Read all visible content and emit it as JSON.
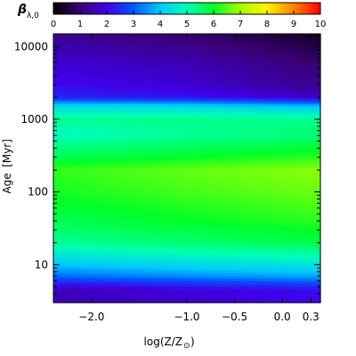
{
  "chart_data": {
    "type": "heatmap",
    "title": "",
    "colorbar": {
      "label_symbol": "β",
      "label_subscript": "λ,0",
      "range": [
        0,
        10
      ],
      "ticks": [
        "0",
        "1",
        "2",
        "3",
        "4",
        "5",
        "6",
        "7",
        "8",
        "9",
        "10"
      ],
      "colormap": [
        "#000000",
        "#3a0076",
        "#3f00e8",
        "#0057ff",
        "#00c8ff",
        "#00ffb2",
        "#00ff28",
        "#a6ff00",
        "#fff200",
        "#ff8200",
        "#ff0000"
      ],
      "placement": "top"
    },
    "xlabel": "log(Z/Z",
    "xlabel_subscript": "⊙",
    "xlabel_close": ")",
    "xlim": [
      -2.4,
      0.4
    ],
    "xticks": [
      {
        "value": -2.0,
        "label": "−2.0"
      },
      {
        "value": -1.0,
        "label": "−1.0"
      },
      {
        "value": -0.5,
        "label": "−0.5"
      },
      {
        "value": 0.0,
        "label": "0.0"
      },
      {
        "value": 0.3,
        "label": "0.3"
      }
    ],
    "ylabel": "Age",
    "ylabel_unit": "[Myr]",
    "yscale": "log",
    "ylim": [
      3,
      15000
    ],
    "yticks": [
      {
        "value": 10,
        "label": "10"
      },
      {
        "value": 100,
        "label": "100"
      },
      {
        "value": 1000,
        "label": "1000"
      },
      {
        "value": 10000,
        "label": "10000"
      }
    ],
    "age_profile": [
      {
        "age": 3,
        "beta": 1.8
      },
      {
        "age": 4.5,
        "beta": 1.9
      },
      {
        "age": 5.5,
        "beta": 2.6
      },
      {
        "age": 7,
        "beta": 3.5
      },
      {
        "age": 10,
        "beta": 4.3
      },
      {
        "age": 20,
        "beta": 5.5
      },
      {
        "age": 40,
        "beta": 6.0
      },
      {
        "age": 100,
        "beta": 6.4
      },
      {
        "age": 200,
        "beta": 6.6
      },
      {
        "age": 300,
        "beta": 6.0
      },
      {
        "age": 600,
        "beta": 5.2
      },
      {
        "age": 1000,
        "beta": 5.3
      },
      {
        "age": 1500,
        "beta": 4.3
      },
      {
        "age": 2000,
        "beta": 2.2
      },
      {
        "age": 3000,
        "beta": 1.8
      },
      {
        "age": 5000,
        "beta": 1.6
      },
      {
        "age": 10000,
        "beta": 1.2
      },
      {
        "age": 15000,
        "beta": 0.9
      }
    ],
    "metal_adjust": [
      {
        "logZ": -2.4,
        "delta": -0.3
      },
      {
        "logZ": -1.0,
        "delta": 0.0
      },
      {
        "logZ": 0.4,
        "delta": 0.25
      }
    ],
    "old_age_adjust": [
      {
        "logZ": -2.4,
        "delta": 0.3
      },
      {
        "logZ": -1.0,
        "delta": 0.0
      },
      {
        "logZ": 0.4,
        "delta": -0.6
      }
    ],
    "grid": false
  }
}
